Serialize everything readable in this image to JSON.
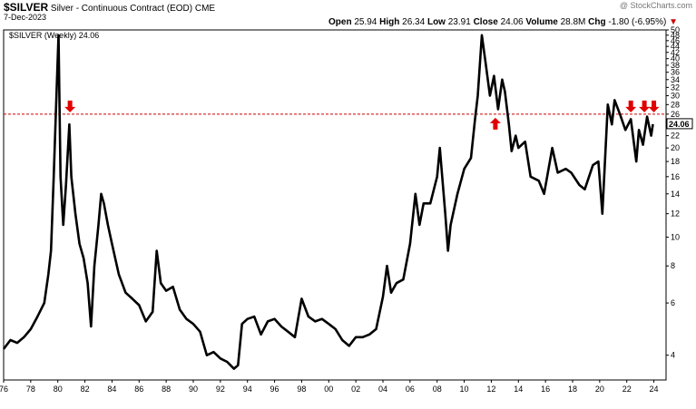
{
  "header": {
    "symbol": "$SILVER",
    "description": "Silver - Continuous Contract (EOD)",
    "exchange": "CME",
    "date": "7-Dec-2023",
    "open_label": "Open",
    "open": "25.94",
    "high_label": "High",
    "high": "26.34",
    "low_label": "Low",
    "low": "23.91",
    "close_label": "Close",
    "close": "24.06",
    "volume_label": "Volume",
    "volume": "28.8M",
    "chg_label": "Chg",
    "chg": "-1.80 (-6.95%)",
    "chg_arrow": "▼",
    "watermark": "@ StockCharts.com"
  },
  "colors": {
    "price": "#000000",
    "reference_line": "#d00000",
    "arrow": "#e00000"
  },
  "chart_data": {
    "type": "line",
    "legend": "$SILVER (Weekly) 24.06",
    "legend_placement": "top-left",
    "y_scale": "log",
    "ylim": [
      3.3,
      50
    ],
    "xlim": [
      1976,
      2024.9
    ],
    "y_axis_side": "right",
    "y_ticks": [
      4,
      6,
      8,
      10,
      12,
      14,
      16,
      18,
      20,
      22,
      24,
      26,
      28,
      30,
      32,
      34,
      36,
      38,
      40,
      42,
      44,
      46,
      48,
      50
    ],
    "last_value_label": "24.06",
    "x_ticks": [
      {
        "v": 1976,
        "label": "76"
      },
      {
        "v": 1978,
        "label": "78"
      },
      {
        "v": 1980,
        "label": "80"
      },
      {
        "v": 1982,
        "label": "82"
      },
      {
        "v": 1984,
        "label": "84"
      },
      {
        "v": 1986,
        "label": "86"
      },
      {
        "v": 1988,
        "label": "88"
      },
      {
        "v": 1990,
        "label": "90"
      },
      {
        "v": 1992,
        "label": "92"
      },
      {
        "v": 1994,
        "label": "94"
      },
      {
        "v": 1996,
        "label": "96"
      },
      {
        "v": 1998,
        "label": "98"
      },
      {
        "v": 2000,
        "label": "00"
      },
      {
        "v": 2002,
        "label": "02"
      },
      {
        "v": 2004,
        "label": "04"
      },
      {
        "v": 2006,
        "label": "06"
      },
      {
        "v": 2008,
        "label": "08"
      },
      {
        "v": 2010,
        "label": "10"
      },
      {
        "v": 2012,
        "label": "12"
      },
      {
        "v": 2014,
        "label": "14"
      },
      {
        "v": 2016,
        "label": "16"
      },
      {
        "v": 2018,
        "label": "18"
      },
      {
        "v": 2020,
        "label": "20"
      },
      {
        "v": 2022,
        "label": "22"
      },
      {
        "v": 2024,
        "label": "24"
      }
    ],
    "reference_line": 26,
    "arrows": [
      {
        "x": 1980.9,
        "y": 26,
        "direction": "down"
      },
      {
        "x": 2012.3,
        "y": 26,
        "direction": "up"
      },
      {
        "x": 2022.3,
        "y": 26,
        "direction": "down"
      },
      {
        "x": 2023.3,
        "y": 26,
        "direction": "down"
      },
      {
        "x": 2024.0,
        "y": 26,
        "direction": "down"
      }
    ],
    "series": [
      {
        "points": [
          [
            1976.0,
            4.2
          ],
          [
            1976.5,
            4.5
          ],
          [
            1977.0,
            4.4
          ],
          [
            1977.5,
            4.6
          ],
          [
            1978.0,
            4.9
          ],
          [
            1978.5,
            5.4
          ],
          [
            1979.0,
            6.0
          ],
          [
            1979.3,
            7.5
          ],
          [
            1979.5,
            9.0
          ],
          [
            1979.7,
            16.0
          ],
          [
            1979.9,
            30.0
          ],
          [
            1980.05,
            48.0
          ],
          [
            1980.2,
            16.0
          ],
          [
            1980.4,
            11.0
          ],
          [
            1980.6,
            15.0
          ],
          [
            1980.85,
            24.0
          ],
          [
            1981.0,
            16.0
          ],
          [
            1981.3,
            12.0
          ],
          [
            1981.6,
            9.5
          ],
          [
            1981.9,
            8.5
          ],
          [
            1982.2,
            7.0
          ],
          [
            1982.45,
            5.0
          ],
          [
            1982.7,
            8.0
          ],
          [
            1983.0,
            11.0
          ],
          [
            1983.2,
            14.0
          ],
          [
            1983.4,
            13.0
          ],
          [
            1983.7,
            11.0
          ],
          [
            1984.0,
            9.5
          ],
          [
            1984.5,
            7.5
          ],
          [
            1985.0,
            6.5
          ],
          [
            1985.5,
            6.2
          ],
          [
            1986.0,
            5.9
          ],
          [
            1986.5,
            5.2
          ],
          [
            1987.0,
            5.6
          ],
          [
            1987.3,
            9.0
          ],
          [
            1987.6,
            7.0
          ],
          [
            1988.0,
            6.6
          ],
          [
            1988.5,
            6.8
          ],
          [
            1989.0,
            5.7
          ],
          [
            1989.5,
            5.3
          ],
          [
            1990.0,
            5.1
          ],
          [
            1990.5,
            4.8
          ],
          [
            1991.0,
            4.0
          ],
          [
            1991.5,
            4.1
          ],
          [
            1992.0,
            3.9
          ],
          [
            1992.5,
            3.8
          ],
          [
            1993.0,
            3.6
          ],
          [
            1993.3,
            3.7
          ],
          [
            1993.6,
            5.1
          ],
          [
            1994.0,
            5.3
          ],
          [
            1994.5,
            5.4
          ],
          [
            1995.0,
            4.7
          ],
          [
            1995.5,
            5.2
          ],
          [
            1996.0,
            5.3
          ],
          [
            1996.5,
            5.0
          ],
          [
            1997.0,
            4.8
          ],
          [
            1997.5,
            4.6
          ],
          [
            1998.0,
            6.2
          ],
          [
            1998.5,
            5.4
          ],
          [
            1999.0,
            5.2
          ],
          [
            1999.5,
            5.3
          ],
          [
            2000.0,
            5.1
          ],
          [
            2000.5,
            4.9
          ],
          [
            2001.0,
            4.5
          ],
          [
            2001.5,
            4.3
          ],
          [
            2002.0,
            4.6
          ],
          [
            2002.5,
            4.6
          ],
          [
            2003.0,
            4.7
          ],
          [
            2003.5,
            4.9
          ],
          [
            2004.0,
            6.3
          ],
          [
            2004.3,
            8.0
          ],
          [
            2004.6,
            6.5
          ],
          [
            2005.0,
            7.0
          ],
          [
            2005.5,
            7.2
          ],
          [
            2006.0,
            9.5
          ],
          [
            2006.4,
            14.0
          ],
          [
            2006.7,
            11.0
          ],
          [
            2007.0,
            13.0
          ],
          [
            2007.5,
            13.0
          ],
          [
            2008.0,
            16.0
          ],
          [
            2008.2,
            20.0
          ],
          [
            2008.6,
            12.0
          ],
          [
            2008.8,
            9.0
          ],
          [
            2009.0,
            11.0
          ],
          [
            2009.5,
            14.0
          ],
          [
            2010.0,
            17.0
          ],
          [
            2010.5,
            18.5
          ],
          [
            2010.8,
            25.0
          ],
          [
            2011.0,
            30.0
          ],
          [
            2011.3,
            48.0
          ],
          [
            2011.6,
            38.0
          ],
          [
            2011.9,
            30.0
          ],
          [
            2012.2,
            35.0
          ],
          [
            2012.5,
            27.0
          ],
          [
            2012.8,
            34.0
          ],
          [
            2013.0,
            31.0
          ],
          [
            2013.3,
            24.0
          ],
          [
            2013.5,
            19.5
          ],
          [
            2013.8,
            22.0
          ],
          [
            2014.0,
            20.0
          ],
          [
            2014.5,
            21.0
          ],
          [
            2014.9,
            16.0
          ],
          [
            2015.5,
            15.5
          ],
          [
            2015.9,
            14.0
          ],
          [
            2016.5,
            20.0
          ],
          [
            2016.9,
            16.5
          ],
          [
            2017.5,
            17.0
          ],
          [
            2017.9,
            16.5
          ],
          [
            2018.5,
            15.0
          ],
          [
            2018.9,
            14.5
          ],
          [
            2019.5,
            17.5
          ],
          [
            2019.9,
            18.0
          ],
          [
            2020.2,
            12.0
          ],
          [
            2020.6,
            28.0
          ],
          [
            2020.9,
            24.0
          ],
          [
            2021.1,
            29.0
          ],
          [
            2021.5,
            26.0
          ],
          [
            2021.9,
            23.0
          ],
          [
            2022.3,
            25.0
          ],
          [
            2022.7,
            18.0
          ],
          [
            2022.9,
            23.0
          ],
          [
            2023.2,
            20.5
          ],
          [
            2023.5,
            25.5
          ],
          [
            2023.8,
            22.0
          ],
          [
            2023.93,
            24.06
          ]
        ]
      }
    ]
  }
}
